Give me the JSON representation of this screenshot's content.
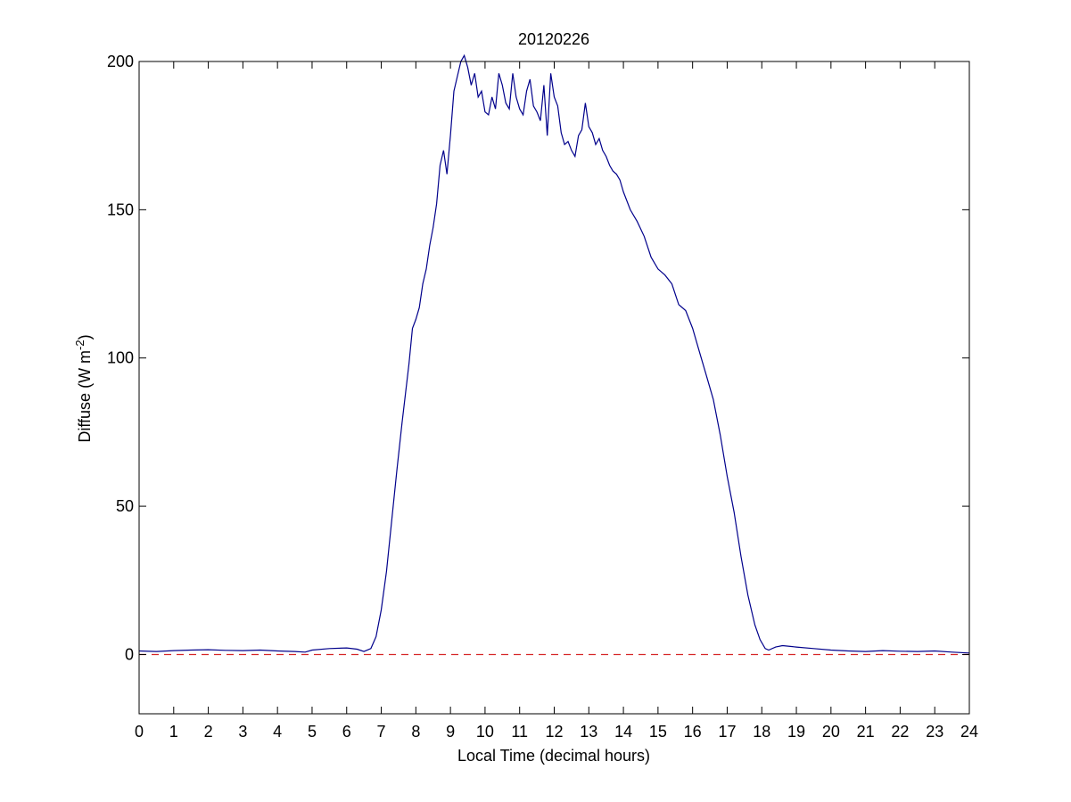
{
  "chart_data": {
    "type": "line",
    "title": "20120226",
    "xlabel": "Local Time (decimal hours)",
    "ylabel_main": "Diffuse (W m",
    "ylabel_sup": "-2",
    "ylabel_close": ")",
    "xlim": [
      0,
      24
    ],
    "ylim": [
      -20,
      200
    ],
    "xticks": [
      "0",
      "1",
      "2",
      "3",
      "4",
      "5",
      "6",
      "7",
      "8",
      "9",
      "10",
      "11",
      "12",
      "13",
      "14",
      "15",
      "16",
      "17",
      "18",
      "19",
      "20",
      "21",
      "22",
      "23",
      "24"
    ],
    "yticks": [
      "0",
      "50",
      "100",
      "150",
      "200"
    ],
    "grid": false,
    "legend": false,
    "series": [
      {
        "color": "#00008B",
        "x": [
          0,
          0.5,
          1,
          1.5,
          2,
          2.5,
          3,
          3.5,
          4,
          4.5,
          4.8,
          5,
          5.5,
          6,
          6.3,
          6.5,
          6.7,
          6.85,
          7.0,
          7.15,
          7.3,
          7.45,
          7.6,
          7.7,
          7.8,
          7.9,
          8.0,
          8.1,
          8.2,
          8.3,
          8.4,
          8.5,
          8.6,
          8.7,
          8.8,
          8.9,
          9.0,
          9.1,
          9.2,
          9.3,
          9.4,
          9.5,
          9.6,
          9.7,
          9.8,
          9.9,
          10.0,
          10.1,
          10.2,
          10.3,
          10.4,
          10.5,
          10.6,
          10.7,
          10.8,
          10.9,
          11.0,
          11.1,
          11.2,
          11.3,
          11.4,
          11.5,
          11.6,
          11.7,
          11.8,
          11.9,
          12.0,
          12.1,
          12.2,
          12.3,
          12.4,
          12.5,
          12.6,
          12.7,
          12.8,
          12.9,
          13.0,
          13.1,
          13.2,
          13.3,
          13.4,
          13.5,
          13.6,
          13.7,
          13.8,
          13.9,
          14.0,
          14.2,
          14.4,
          14.6,
          14.8,
          15.0,
          15.2,
          15.4,
          15.6,
          15.8,
          16.0,
          16.2,
          16.4,
          16.6,
          16.8,
          17.0,
          17.2,
          17.4,
          17.6,
          17.8,
          17.95,
          18.1,
          18.2,
          18.4,
          18.6,
          19.0,
          19.5,
          20.0,
          20.5,
          21.0,
          21.5,
          22.0,
          22.5,
          23.0,
          23.5,
          24.0
        ],
        "y": [
          1.2,
          1.0,
          1.3,
          1.5,
          1.6,
          1.4,
          1.3,
          1.5,
          1.2,
          1.0,
          0.8,
          1.5,
          2.0,
          2.2,
          1.8,
          1.0,
          2.0,
          6.0,
          15.0,
          28.0,
          45.0,
          62.0,
          78.0,
          88.0,
          98.0,
          110.0,
          113.0,
          117.0,
          125.0,
          130.0,
          138.0,
          144.0,
          152.0,
          165.0,
          170.0,
          162.0,
          175.0,
          190.0,
          195.0,
          200.0,
          202.0,
          198.0,
          192.0,
          196.0,
          188.0,
          190.0,
          183.0,
          182.0,
          188.0,
          184.0,
          196.0,
          192.0,
          186.0,
          184.0,
          196.0,
          188.0,
          184.0,
          182.0,
          190.0,
          194.0,
          185.0,
          183.0,
          180.0,
          192.0,
          175.0,
          196.0,
          188.0,
          185.0,
          176.0,
          172.0,
          173.0,
          170.0,
          168.0,
          175.0,
          177.0,
          186.0,
          178.0,
          176.0,
          172.0,
          174.0,
          170.0,
          168.0,
          165.0,
          163.0,
          162.0,
          160.0,
          156.0,
          150.0,
          146.0,
          141.0,
          134.0,
          130.0,
          128.0,
          125.0,
          118.0,
          116.0,
          110.0,
          102.0,
          94.0,
          86.0,
          74.0,
          60.0,
          48.0,
          33.0,
          20.0,
          10.0,
          5.0,
          2.0,
          1.5,
          2.5,
          3.0,
          2.5,
          2.0,
          1.5,
          1.2,
          1.0,
          1.3,
          1.1,
          1.0,
          1.2,
          0.8,
          0.5
        ]
      },
      {
        "color": "#D62728",
        "dashed": true,
        "x": [
          0,
          24
        ],
        "y": [
          0,
          0
        ]
      }
    ]
  }
}
